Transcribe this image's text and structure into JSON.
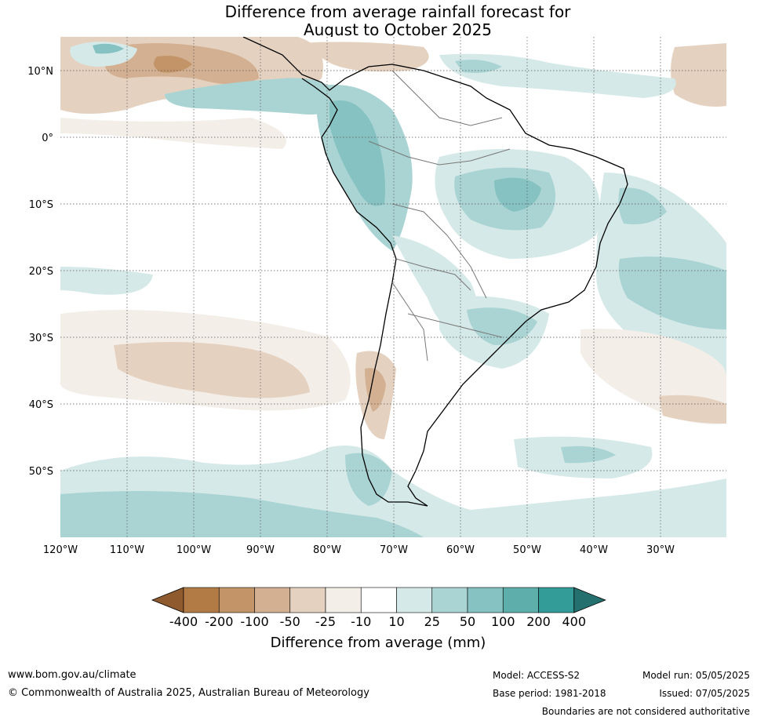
{
  "title": {
    "line1": "Difference from average rainfall forecast for",
    "line2": "August to October 2025"
  },
  "map": {
    "lat_labels": [
      "10°N",
      "0°",
      "10°S",
      "20°S",
      "30°S",
      "40°S",
      "50°S"
    ],
    "lon_labels": [
      "120°W",
      "110°W",
      "100°W",
      "90°W",
      "80°W",
      "70°W",
      "60°W",
      "50°W",
      "40°W",
      "30°W"
    ]
  },
  "colorbar": {
    "title": "Difference from average (mm)",
    "tick_labels": [
      "-400",
      "-200",
      "-100",
      "-50",
      "-25",
      "-10",
      "10",
      "25",
      "50",
      "100",
      "200",
      "400"
    ],
    "colors": [
      "#8e5a2e",
      "#b27a44",
      "#c39467",
      "#d3b092",
      "#e5d1bf",
      "#f3eee8",
      "#ffffff",
      "#d5e9e8",
      "#a9d4d3",
      "#86c2c1",
      "#5eaeab",
      "#339c99",
      "#24706e"
    ]
  },
  "footer": {
    "website": "www.bom.gov.au/climate",
    "copyright": "© Commonwealth of Australia 2025, Australian Bureau of Meteorology",
    "model": "Model: ACCESS-S2",
    "base_period": "Base period: 1981-2018",
    "model_run": "Model run: 05/05/2025",
    "issued": "Issued: 07/05/2025",
    "disclaimer": "Boundaries are not considered authoritative"
  }
}
